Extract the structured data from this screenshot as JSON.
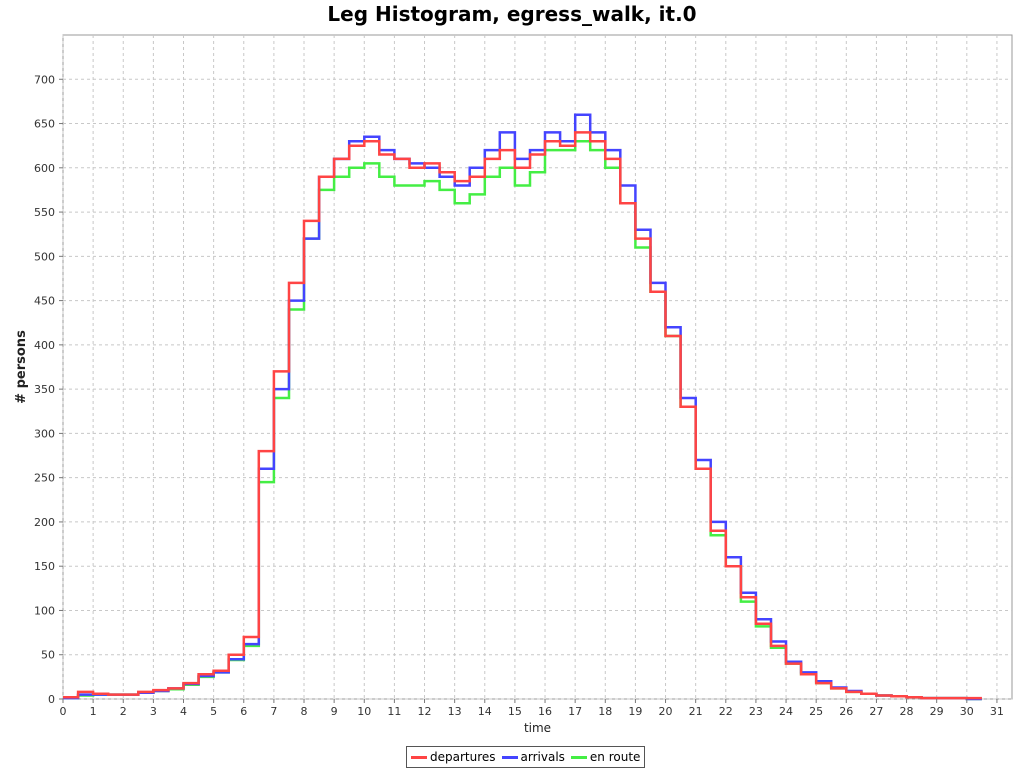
{
  "chart_data": {
    "type": "line",
    "title": "Leg Histogram, egress_walk, it.0",
    "xlabel": "time",
    "ylabel": "# persons",
    "xlim": [
      0,
      31.5
    ],
    "ylim": [
      0,
      750
    ],
    "xticks": [
      0,
      1,
      2,
      3,
      4,
      5,
      6,
      7,
      8,
      9,
      10,
      11,
      12,
      13,
      14,
      15,
      16,
      17,
      18,
      19,
      20,
      21,
      22,
      23,
      24,
      25,
      26,
      27,
      28,
      29,
      30,
      31
    ],
    "yticks": [
      0,
      50,
      100,
      150,
      200,
      250,
      300,
      350,
      400,
      450,
      500,
      550,
      600,
      650,
      700
    ],
    "grid": true,
    "legend_position": "bottom-center",
    "x": [
      0,
      0.5,
      1,
      1.5,
      2,
      2.5,
      3,
      3.5,
      4,
      4.5,
      5,
      5.5,
      6,
      6.5,
      7,
      7.5,
      8,
      8.5,
      9,
      9.5,
      10,
      10.5,
      11,
      11.5,
      12,
      12.5,
      13,
      13.5,
      14,
      14.5,
      15,
      15.5,
      16,
      16.5,
      17,
      17.5,
      18,
      18.5,
      19,
      19.5,
      20,
      20.5,
      21,
      21.5,
      22,
      22.5,
      23,
      23.5,
      24,
      24.5,
      25,
      25.5,
      26,
      26.5,
      27,
      27.5,
      28,
      28.5,
      29,
      29.5,
      30
    ],
    "series": [
      {
        "name": "departures",
        "color": "#ff4444",
        "values": [
          2,
          8,
          6,
          5,
          5,
          8,
          10,
          12,
          18,
          28,
          32,
          50,
          70,
          280,
          370,
          470,
          540,
          590,
          610,
          625,
          630,
          615,
          610,
          600,
          605,
          595,
          585,
          590,
          610,
          620,
          600,
          615,
          630,
          625,
          640,
          630,
          610,
          560,
          520,
          460,
          410,
          330,
          260,
          190,
          150,
          115,
          85,
          60,
          40,
          28,
          18,
          12,
          8,
          6,
          4,
          3,
          2,
          1,
          1,
          1,
          1
        ]
      },
      {
        "name": "arrivals",
        "color": "#4444ff",
        "values": [
          1,
          5,
          5,
          5,
          5,
          7,
          9,
          12,
          17,
          26,
          30,
          45,
          62,
          260,
          350,
          450,
          520,
          590,
          610,
          630,
          635,
          620,
          610,
          605,
          600,
          590,
          580,
          600,
          620,
          640,
          610,
          620,
          640,
          630,
          660,
          640,
          620,
          580,
          530,
          470,
          420,
          340,
          270,
          200,
          160,
          120,
          90,
          65,
          42,
          30,
          20,
          13,
          9,
          6,
          4,
          3,
          2,
          1,
          1,
          1,
          0
        ]
      },
      {
        "name": "en route",
        "color": "#44ee44",
        "values": [
          1,
          4,
          5,
          5,
          5,
          7,
          9,
          11,
          16,
          25,
          30,
          44,
          60,
          245,
          340,
          440,
          520,
          575,
          590,
          600,
          605,
          590,
          580,
          580,
          585,
          575,
          560,
          570,
          590,
          600,
          580,
          595,
          620,
          620,
          630,
          620,
          600,
          560,
          510,
          460,
          410,
          330,
          260,
          185,
          150,
          110,
          82,
          58,
          40,
          28,
          18,
          12,
          8,
          6,
          4,
          3,
          2,
          1,
          1,
          1,
          0
        ]
      }
    ]
  }
}
